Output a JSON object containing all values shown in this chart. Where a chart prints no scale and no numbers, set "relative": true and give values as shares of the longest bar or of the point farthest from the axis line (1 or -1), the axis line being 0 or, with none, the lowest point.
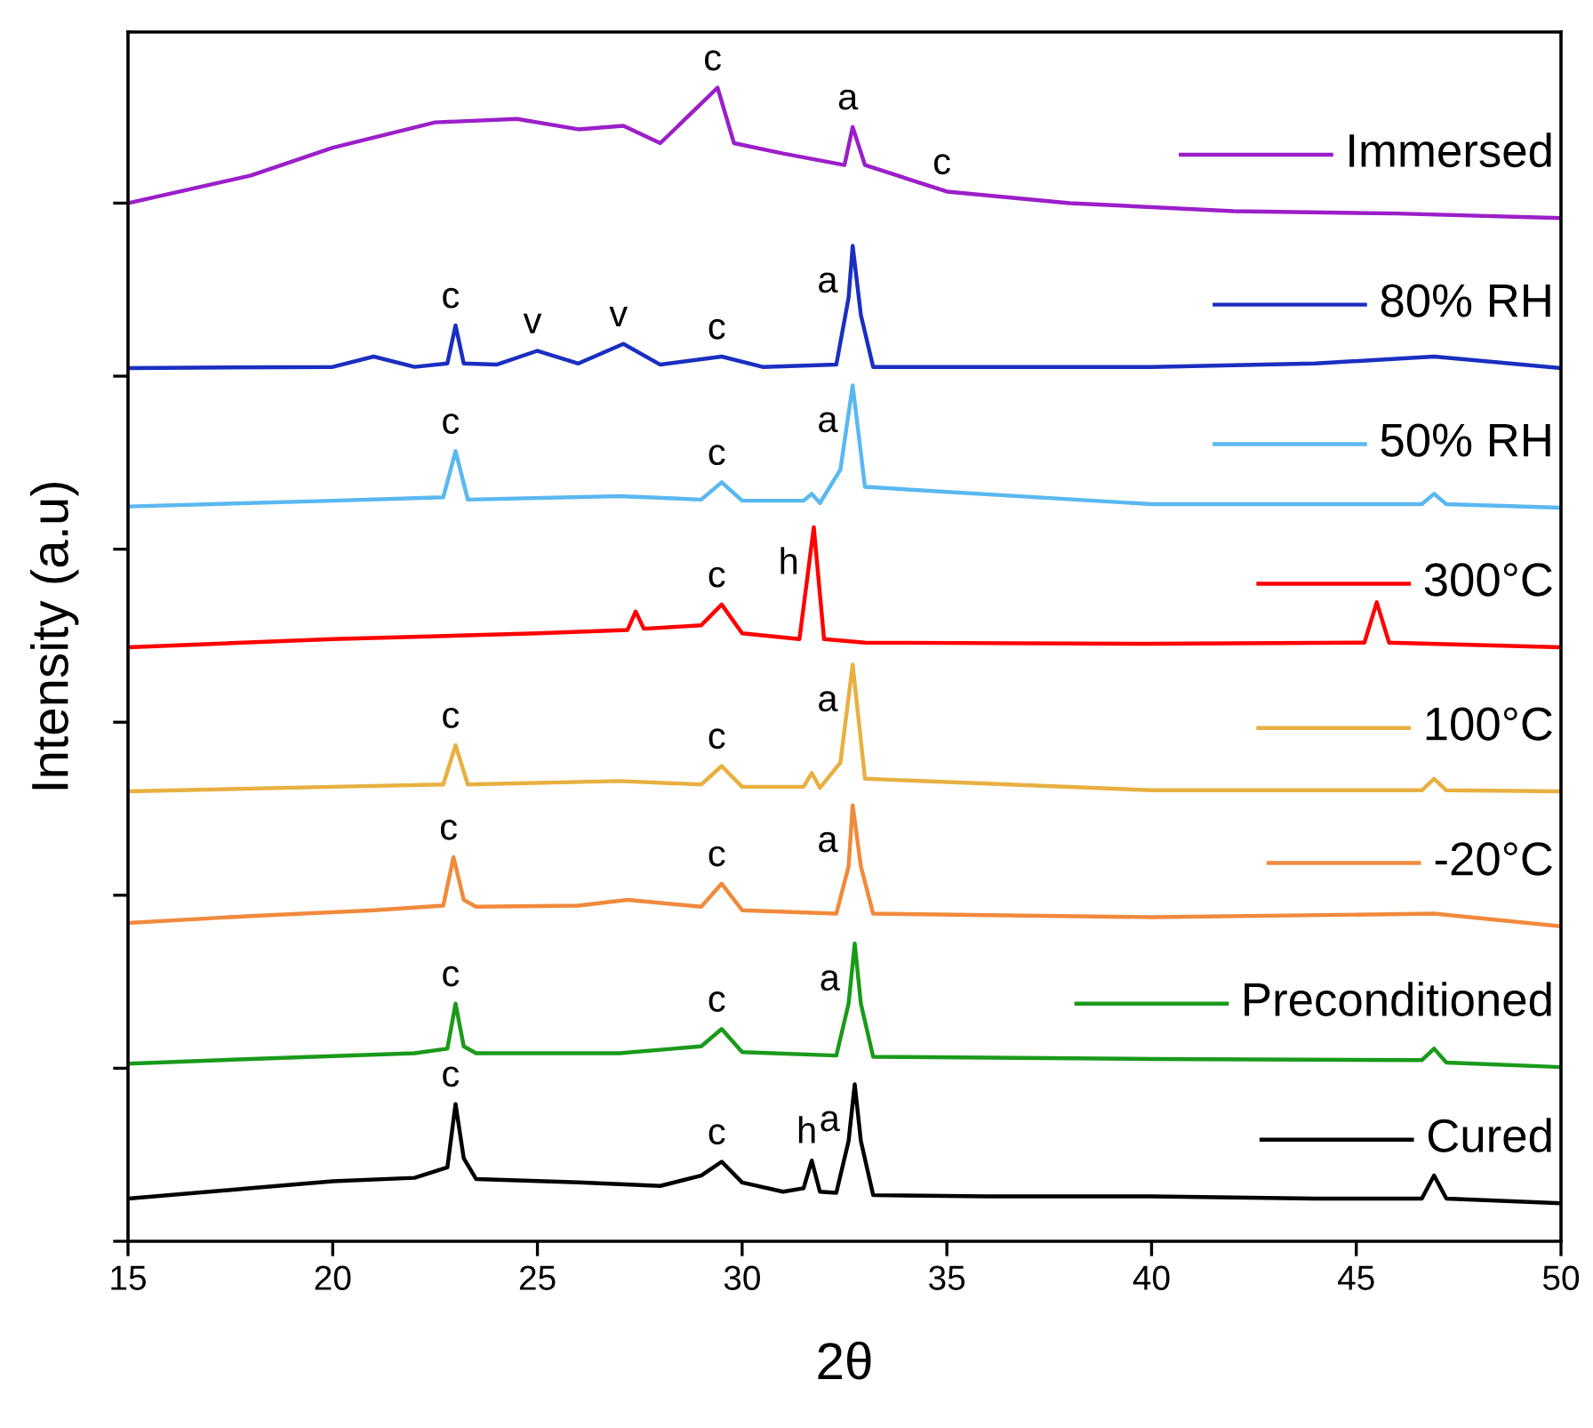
{
  "chart_data": {
    "type": "line",
    "relative": true,
    "xlabel": "2θ",
    "ylabel": "Intensity (a.u)",
    "xlim": [
      15,
      50
    ],
    "xticks": [
      15,
      20,
      25,
      30,
      35,
      40,
      45,
      50
    ],
    "tick_labels": "x",
    "grid": false,
    "marker": "none",
    "line_style": "solid",
    "series": [
      {
        "name": "Immersed",
        "color": "#9b1fc9",
        "x": [
          15,
          18,
          20,
          22.5,
          24.5,
          26,
          27.1,
          28,
          29.4,
          29.8,
          31,
          32.5,
          32.7,
          33,
          35,
          38,
          42,
          46,
          50
        ],
        "values": [
          0.9,
          0.924,
          0.948,
          0.97,
          0.973,
          0.964,
          0.967,
          0.952,
          1.0,
          0.952,
          0.943,
          0.933,
          0.966,
          0.933,
          0.91,
          0.9,
          0.893,
          0.891,
          0.887
        ]
      },
      {
        "name": "80% RH",
        "color": "#1a2fc0",
        "x": [
          15,
          20,
          21.0,
          22,
          22.8,
          23.0,
          23.2,
          24,
          25.0,
          26,
          27.1,
          28,
          29.5,
          30.5,
          32.3,
          32.6,
          32.7,
          32.9,
          33.2,
          40,
          44,
          46.9,
          50
        ],
        "values": [
          0.757,
          0.758,
          0.767,
          0.758,
          0.761,
          0.794,
          0.761,
          0.76,
          0.772,
          0.761,
          0.778,
          0.76,
          0.767,
          0.758,
          0.76,
          0.818,
          0.863,
          0.803,
          0.758,
          0.758,
          0.761,
          0.767,
          0.757
        ]
      },
      {
        "name": "50% RH",
        "color": "#5ab8f0",
        "x": [
          15,
          20,
          22.7,
          23.0,
          23.3,
          27,
          29.0,
          29.5,
          30.0,
          31.5,
          31.7,
          31.9,
          32.4,
          32.7,
          33.0,
          40,
          46.6,
          46.9,
          47.2,
          50
        ],
        "values": [
          0.637,
          0.642,
          0.645,
          0.685,
          0.643,
          0.646,
          0.643,
          0.658,
          0.642,
          0.642,
          0.648,
          0.64,
          0.669,
          0.742,
          0.654,
          0.639,
          0.639,
          0.648,
          0.639,
          0.636
        ]
      },
      {
        "name": "300°C",
        "color": "#ff0000",
        "x": [
          15,
          20,
          25,
          27.2,
          27.4,
          27.6,
          29.0,
          29.5,
          30.0,
          31.4,
          31.75,
          32.0,
          33,
          40,
          45.2,
          45.5,
          45.8,
          50
        ],
        "values": [
          0.515,
          0.522,
          0.527,
          0.53,
          0.546,
          0.531,
          0.534,
          0.552,
          0.527,
          0.522,
          0.619,
          0.522,
          0.519,
          0.518,
          0.519,
          0.554,
          0.519,
          0.515
        ]
      },
      {
        "name": "100°C",
        "color": "#e8b040",
        "x": [
          15,
          20,
          22.7,
          23.0,
          23.3,
          27,
          29.0,
          29.5,
          30.0,
          31.5,
          31.7,
          31.9,
          32.4,
          32.7,
          33.0,
          40,
          46.6,
          46.9,
          47.2,
          50
        ],
        "values": [
          0.39,
          0.394,
          0.396,
          0.43,
          0.396,
          0.399,
          0.396,
          0.412,
          0.394,
          0.394,
          0.406,
          0.393,
          0.415,
          0.5,
          0.401,
          0.391,
          0.391,
          0.401,
          0.391,
          0.39
        ]
      },
      {
        "name": "-20°C",
        "color": "#f08a3c",
        "x": [
          15,
          18,
          21,
          22.7,
          22.95,
          23.2,
          23.5,
          26,
          27.2,
          29.0,
          29.5,
          30.0,
          32.3,
          32.6,
          32.7,
          32.9,
          33.2,
          40,
          46.9,
          50
        ],
        "values": [
          0.276,
          0.282,
          0.287,
          0.291,
          0.333,
          0.296,
          0.29,
          0.291,
          0.296,
          0.29,
          0.31,
          0.287,
          0.284,
          0.325,
          0.378,
          0.325,
          0.284,
          0.281,
          0.284,
          0.273
        ]
      },
      {
        "name": "Preconditioned",
        "color": "#1a9a1a",
        "x": [
          15,
          18,
          22,
          22.8,
          23.0,
          23.2,
          23.5,
          27,
          29.0,
          29.5,
          30.0,
          32.3,
          32.6,
          32.75,
          32.9,
          33.2,
          40,
          46.6,
          46.9,
          47.2,
          50
        ],
        "values": [
          0.154,
          0.158,
          0.163,
          0.167,
          0.206,
          0.169,
          0.163,
          0.163,
          0.169,
          0.184,
          0.164,
          0.161,
          0.206,
          0.258,
          0.206,
          0.16,
          0.158,
          0.157,
          0.167,
          0.155,
          0.151
        ]
      },
      {
        "name": "Cured",
        "color": "#000000",
        "x": [
          15,
          18,
          20,
          22,
          22.8,
          23.0,
          23.2,
          23.5,
          26,
          28,
          29.0,
          29.5,
          30.0,
          31.0,
          31.5,
          31.7,
          31.9,
          32.3,
          32.6,
          32.75,
          32.9,
          33.2,
          36,
          40,
          44,
          46.6,
          46.9,
          47.2,
          50
        ],
        "values": [
          0.037,
          0.046,
          0.052,
          0.055,
          0.064,
          0.119,
          0.072,
          0.054,
          0.051,
          0.048,
          0.057,
          0.069,
          0.051,
          0.043,
          0.046,
          0.07,
          0.043,
          0.042,
          0.087,
          0.136,
          0.087,
          0.04,
          0.039,
          0.039,
          0.037,
          0.037,
          0.057,
          0.037,
          0.033
        ]
      }
    ],
    "legend": "right",
    "annotations": [
      {
        "text": "c",
        "x": 29.4,
        "y": 1.0
      },
      {
        "text": "a",
        "x": 32.7,
        "y": 0.966
      },
      {
        "text": "c",
        "x": 35,
        "y": 0.91
      },
      {
        "text": "c",
        "x": 23.0,
        "y": 0.794
      },
      {
        "text": "v",
        "x": 25.0,
        "y": 0.772
      },
      {
        "text": "v",
        "x": 27.1,
        "y": 0.778
      },
      {
        "text": "c",
        "x": 29.5,
        "y": 0.767
      },
      {
        "text": "a",
        "x": 32.7,
        "y": 0.863
      },
      {
        "text": "c",
        "x": 23.0,
        "y": 0.685
      },
      {
        "text": "c",
        "x": 29.5,
        "y": 0.658
      },
      {
        "text": "a",
        "x": 32.7,
        "y": 0.742
      },
      {
        "text": "c",
        "x": 29.5,
        "y": 0.552
      },
      {
        "text": "h",
        "x": 31.75,
        "y": 0.619
      },
      {
        "text": "c",
        "x": 23.0,
        "y": 0.43
      },
      {
        "text": "c",
        "x": 29.5,
        "y": 0.412
      },
      {
        "text": "a",
        "x": 32.7,
        "y": 0.5
      },
      {
        "text": "c",
        "x": 22.95,
        "y": 0.333
      },
      {
        "text": "c",
        "x": 29.5,
        "y": 0.31
      },
      {
        "text": "a",
        "x": 32.7,
        "y": 0.378
      },
      {
        "text": "c",
        "x": 23.0,
        "y": 0.206
      },
      {
        "text": "c",
        "x": 29.5,
        "y": 0.184
      },
      {
        "text": "a",
        "x": 32.75,
        "y": 0.258
      },
      {
        "text": "c",
        "x": 23.0,
        "y": 0.119
      },
      {
        "text": "c",
        "x": 29.5,
        "y": 0.069
      },
      {
        "text": "h",
        "x": 31.7,
        "y": 0.07
      },
      {
        "text": "a",
        "x": 32.75,
        "y": 0.136
      }
    ]
  }
}
